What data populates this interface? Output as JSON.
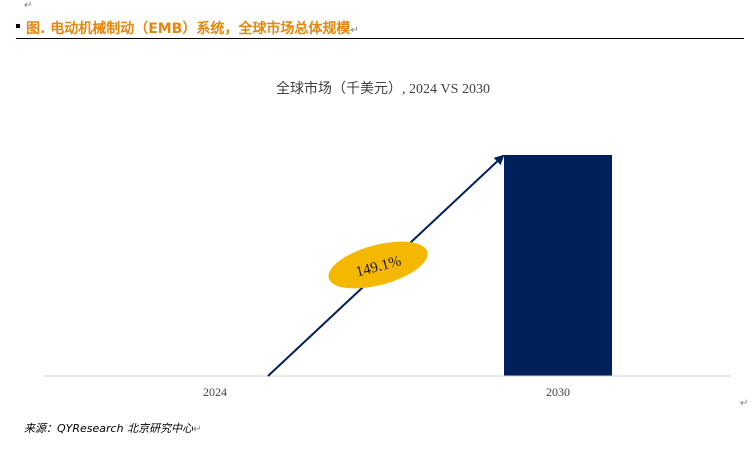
{
  "figure": {
    "caption": "图.   电动机械制动（EMB）系统，全球市场总体规模",
    "source": "来源：QYResearch 北京研究中心",
    "paragraph_mark": "↵"
  },
  "chart_data": {
    "type": "bar",
    "title": "全球市场（千美元）, 2024 VS 2030",
    "categories": [
      "2024",
      "2030"
    ],
    "values": [
      0,
      100
    ],
    "ylim": [
      0,
      100
    ],
    "grid": false,
    "annotation": {
      "label": "149.1%",
      "color": "#f5b800"
    },
    "colors": {
      "bar": "#00205b",
      "arrow": "#00205b"
    }
  }
}
